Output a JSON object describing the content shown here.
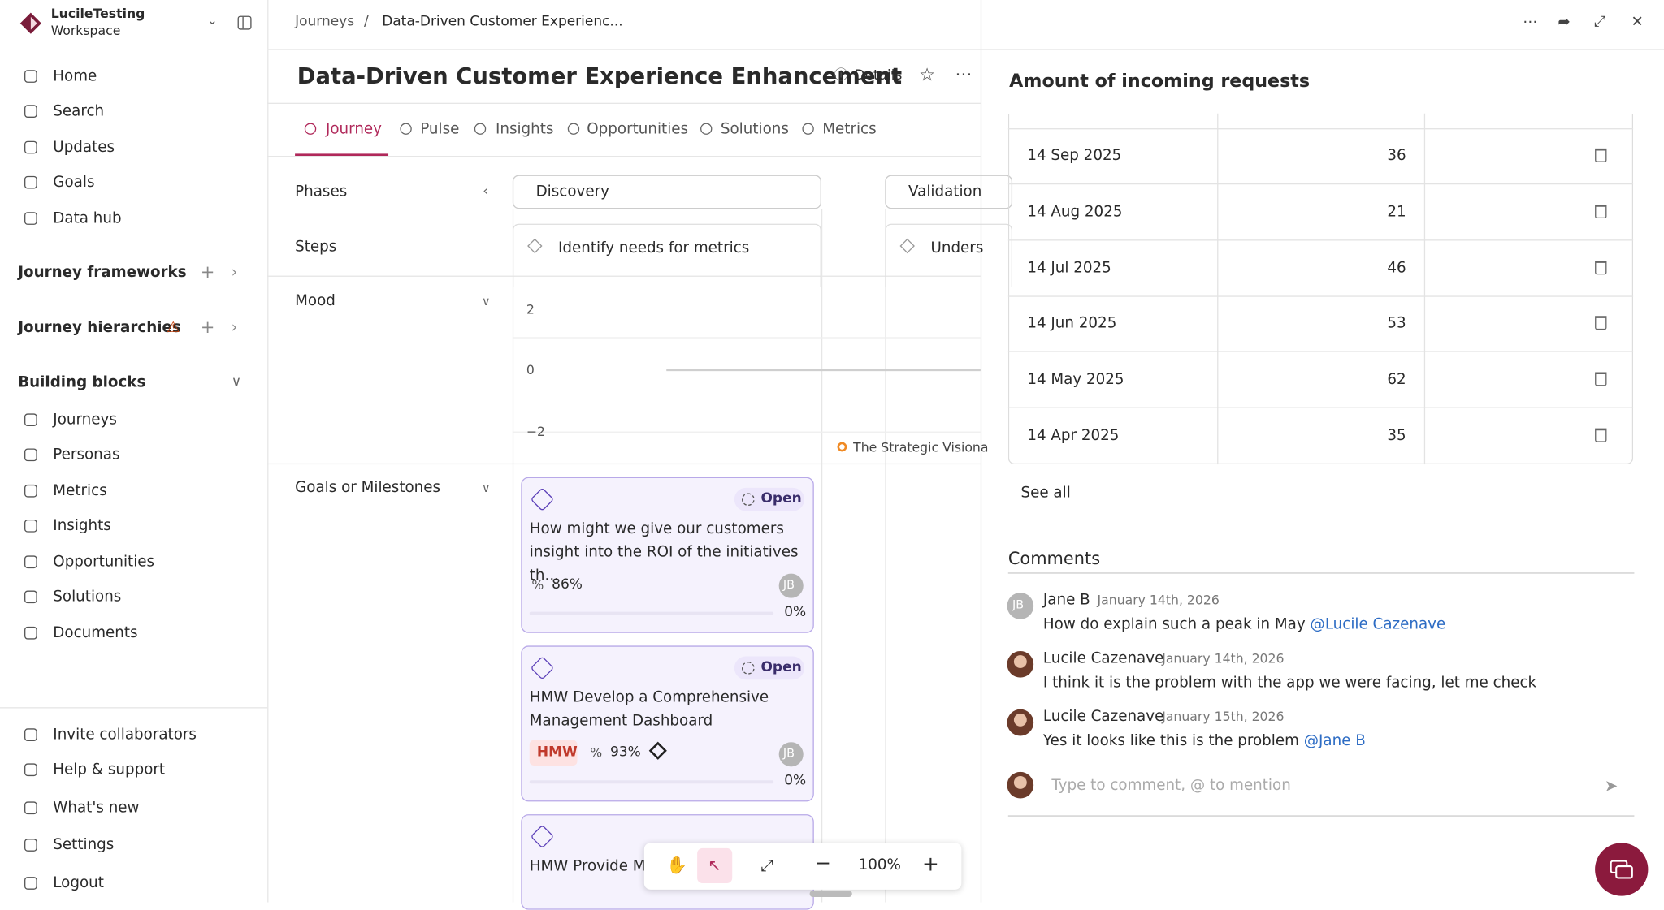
{
  "workspace": {
    "name": "LucileTesting",
    "label": "Workspace"
  },
  "nav": [
    "Home",
    "Search",
    "Updates",
    "Goals",
    "Data hub"
  ],
  "sections": {
    "frameworks": "Journey frameworks",
    "hierarchies": "Journey hierarchies",
    "building_blocks": "Building blocks"
  },
  "blocks": [
    "Journeys",
    "Personas",
    "Metrics",
    "Insights",
    "Opportunities",
    "Solutions",
    "Documents"
  ],
  "footer_nav": [
    "Invite collaborators",
    "Help & support",
    "What's new",
    "Settings",
    "Logout"
  ],
  "breadcrumb": {
    "parent": "Journeys",
    "separator": "/",
    "current": "Data-Driven Customer Experienc..."
  },
  "page": {
    "title": "Data-Driven Customer Experience Enhancement",
    "details": "Details"
  },
  "tabs": [
    "Journey",
    "Pulse",
    "Insights",
    "Opportunities",
    "Solutions",
    "Metrics"
  ],
  "rows": {
    "phases": "Phases",
    "steps": "Steps",
    "mood": "Mood",
    "goals": "Goals or Milestones"
  },
  "phases": [
    "Discovery",
    "Validation"
  ],
  "steps": [
    "Identify needs for metrics",
    "Unders"
  ],
  "mood_axis": [
    "2",
    "0",
    "−2"
  ],
  "mood_note": "The Strategic Visiona",
  "cards": [
    {
      "status": "Open",
      "text": "How might we give our customers insight into the ROI of the initiatives th...",
      "score": "86%",
      "avatar": "JB",
      "progress": "0%"
    },
    {
      "status": "Open",
      "text": "HMW Develop a Comprehensive Management Dashboard",
      "tag": "HMW",
      "score": "93%",
      "avatar": "JB",
      "progress": "0%"
    },
    {
      "text": "HMW Provide Mu"
    }
  ],
  "zoom": "100%",
  "panel": {
    "title": "Amount of incoming requests",
    "rows": [
      [
        "14 Sep 2025",
        36
      ],
      [
        "14 Aug 2025",
        21
      ],
      [
        "14 Jul 2025",
        46
      ],
      [
        "14 Jun 2025",
        53
      ],
      [
        "14 May 2025",
        62
      ],
      [
        "14 Apr 2025",
        35
      ]
    ],
    "see_all": "See all",
    "comments_title": "Comments",
    "comments": [
      {
        "author": "Jane B",
        "date": "January 14th, 2026",
        "avatar": "JB",
        "text": "How do explain such a peak in May",
        "mention": "@Lucile Cazenave"
      },
      {
        "author": "Lucile Cazenave",
        "date": "January 14th, 2026",
        "text": "I think it is the problem with the app we were facing, let me check"
      },
      {
        "author": "Lucile Cazenave",
        "date": "January 15th, 2026",
        "text": "Yes it looks like this is the problem",
        "mention": "@Jane B"
      }
    ],
    "placeholder": "Type to comment, @ to mention"
  }
}
